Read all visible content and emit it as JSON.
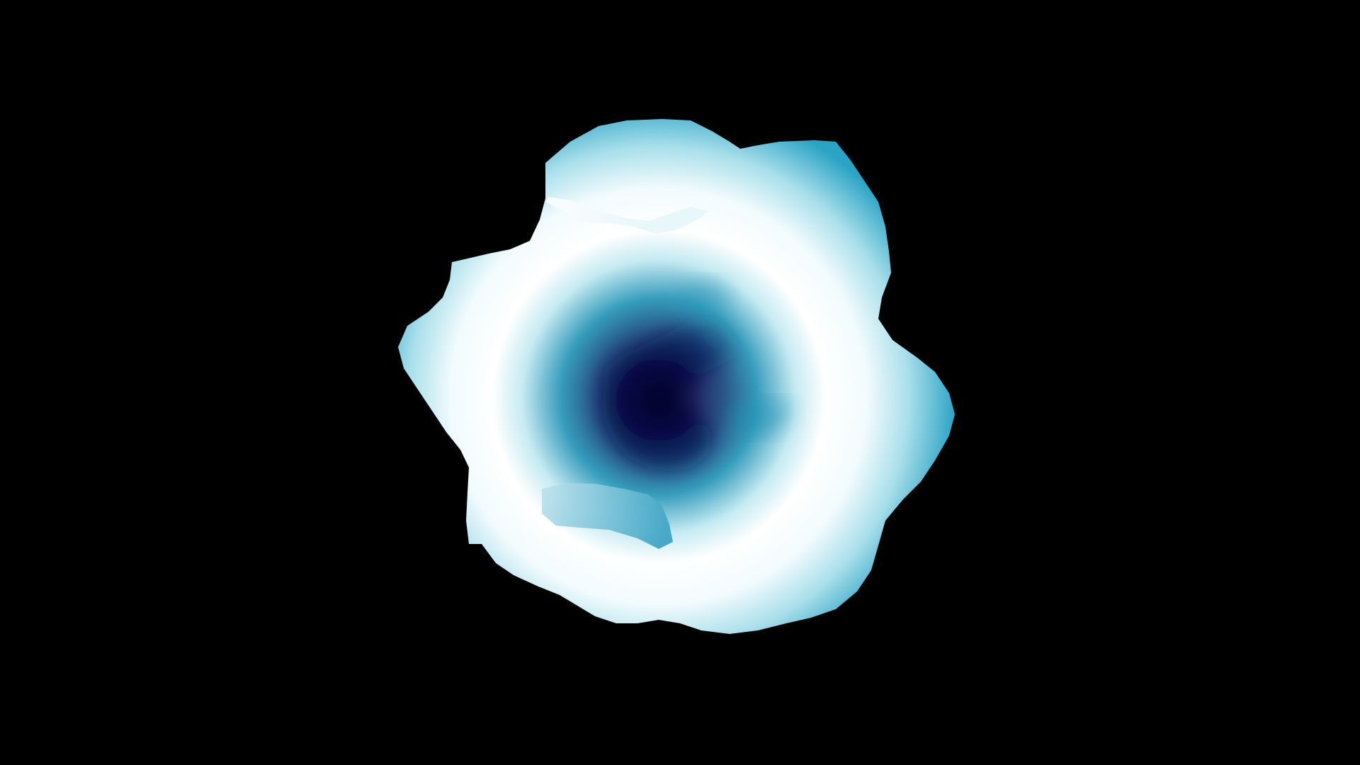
{
  "scene": {
    "subject": "",
    "background_color": "#000000",
    "palette": {
      "core": "#02003a",
      "deep": "#0a3f78",
      "mid": "#1a8fb3",
      "light": "#d9f2f7",
      "white": "#ffffff",
      "rim": "#2aa3c4"
    }
  }
}
